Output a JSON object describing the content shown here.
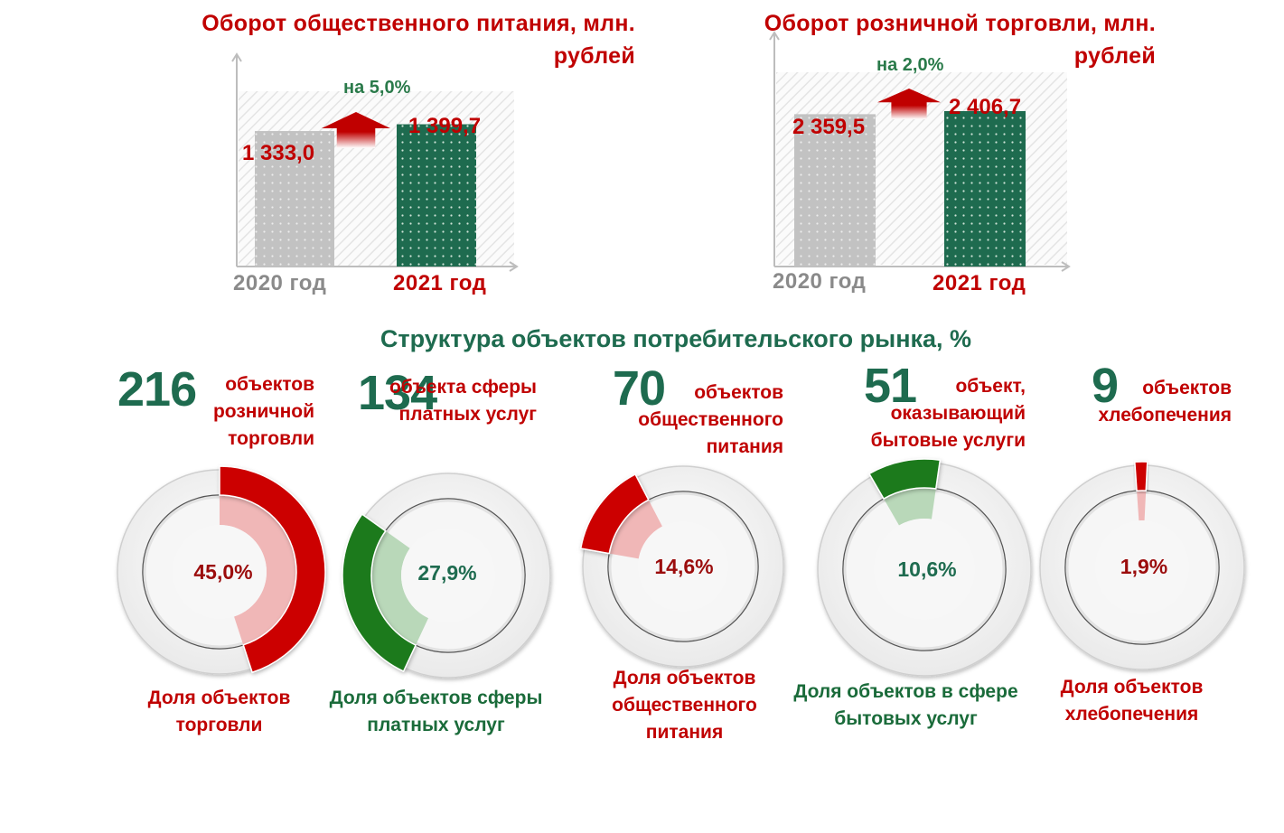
{
  "chart_data": [
    {
      "type": "bar",
      "title": "Оборот общественного питания, млн. рублей",
      "categories": [
        "2020 год",
        "2021 год"
      ],
      "values": [
        1333.0,
        1399.7
      ],
      "value_labels": [
        "1 333,0",
        "1 399,7"
      ],
      "growth_label": "на 5,0%",
      "ylim": [
        0,
        2000
      ],
      "colors": [
        "#c4c4c4",
        "#1e6b4f"
      ]
    },
    {
      "type": "bar",
      "title": "Оборот розничной торговли, млн. рублей",
      "categories": [
        "2020 год",
        "2021 год"
      ],
      "values": [
        2359.5,
        2406.7
      ],
      "value_labels": [
        "2 359,5",
        "2 406,7"
      ],
      "growth_label": "на 2,0%",
      "ylim": [
        0,
        3400
      ],
      "colors": [
        "#c4c4c4",
        "#1e6b4f"
      ]
    },
    {
      "type": "pie",
      "title": "Структура объектов потребительского рынка, %",
      "slices": [
        {
          "count": "216",
          "count_label": "объектов розничной торговли",
          "value": 45.0,
          "pct_label": "45,0%",
          "caption": "Доля объектов торговли",
          "color": "#cc0000",
          "light": "#f0b7b7"
        },
        {
          "count": "134",
          "count_label": "объекта сферы платных услуг",
          "value": 27.9,
          "pct_label": "27,9%",
          "caption": "Доля объектов сферы платных услуг",
          "color": "#1a7a1a",
          "light": "#b9d8b9"
        },
        {
          "count": "70",
          "count_label": "объектов общественного питания",
          "value": 14.6,
          "pct_label": "14,6%",
          "caption": "Доля объектов общественного питания",
          "color": "#cc0000",
          "light": "#f0b7b7"
        },
        {
          "count": "51",
          "count_label": "объект, оказывающий бытовые услуги",
          "value": 10.6,
          "pct_label": "10,6%",
          "caption": "Доля объектов в сфере бытовых услуг",
          "color": "#1a7a1a",
          "light": "#b9d8b9"
        },
        {
          "count": "9",
          "count_label": "объектов хлебопечения",
          "value": 1.9,
          "pct_label": "1,9%",
          "caption": "Доля объектов хлебопечения",
          "color": "#cc0000",
          "light": "#f0b7b7"
        }
      ]
    }
  ]
}
